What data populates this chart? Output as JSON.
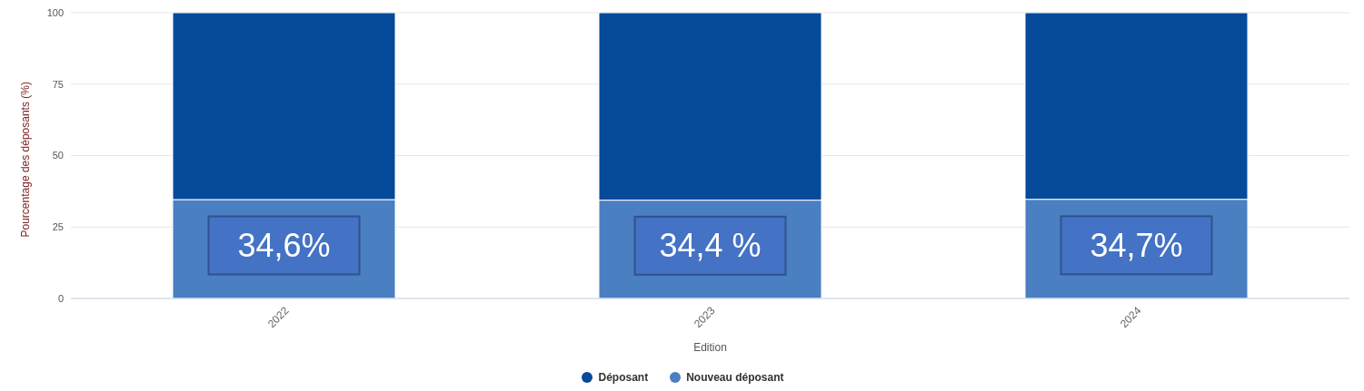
{
  "chart_data": {
    "type": "bar",
    "stacked": true,
    "categories": [
      "2022",
      "2023",
      "2024"
    ],
    "series": [
      {
        "name": "Nouveau déposant",
        "color": "#4a7fc1",
        "values": [
          34.6,
          34.4,
          34.7
        ],
        "value_labels": [
          "34,6%",
          "34,4 %",
          "34,7%"
        ]
      },
      {
        "name": "Déposant",
        "color": "#064a9a",
        "values": [
          65.4,
          65.6,
          65.3
        ]
      }
    ],
    "xlabel": "Edition",
    "ylabel": "Pourcentage des déposants (%)",
    "ylim": [
      0,
      100
    ],
    "yticks": [
      0,
      25,
      50,
      75,
      100
    ],
    "grid": "y",
    "legend": "bottom"
  }
}
